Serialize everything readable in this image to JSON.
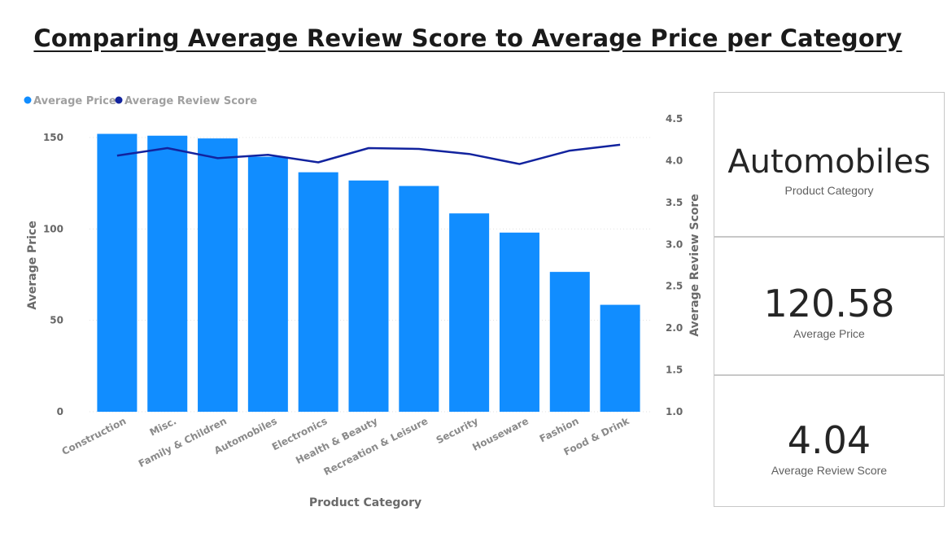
{
  "title": "Comparing Average Review Score to Average Price per Category",
  "colors": {
    "bar": "#118DFF",
    "line": "#12239E",
    "grid": "#e3e3e3"
  },
  "chart_data": {
    "type": "bar",
    "title": "Comparing Average Review Score to Average Price per Category",
    "xlabel": "Product Category",
    "ylabel": "Average Price",
    "y2label": "Average Review Score",
    "legend_placement": "top-left",
    "grid": true,
    "categories": [
      "Construction",
      "Misc.",
      "Family & Children",
      "Automobiles",
      "Electronics",
      "Health & Beauty",
      "Recreation & Leisure",
      "Security",
      "Houseware",
      "Fashion",
      "Food & Drink"
    ],
    "ylim": [
      0,
      152
    ],
    "y2lim": [
      1.0,
      4.5
    ],
    "yticks": [
      "0",
      "50",
      "100",
      "150"
    ],
    "y2ticks": [
      "1.0",
      "1.5",
      "2.0",
      "2.5",
      "3.0",
      "3.5",
      "4.0",
      "4.5"
    ],
    "series": [
      {
        "name": "Average Price",
        "type": "bar",
        "axis": "left",
        "values": [
          152,
          151,
          149.5,
          139.5,
          131,
          126.5,
          123.5,
          108.5,
          98,
          76.5,
          58.5
        ]
      },
      {
        "name": "Average Review Score",
        "type": "line",
        "axis": "right",
        "values": [
          4.06,
          4.15,
          4.03,
          4.07,
          3.98,
          4.15,
          4.14,
          4.08,
          3.96,
          4.12,
          4.19
        ]
      }
    ]
  },
  "cards": {
    "category": {
      "value": "Automobiles",
      "label": "Product Category"
    },
    "price": {
      "value": "120.58",
      "label": "Average Price"
    },
    "score": {
      "value": "4.04",
      "label": "Average Review Score"
    }
  }
}
